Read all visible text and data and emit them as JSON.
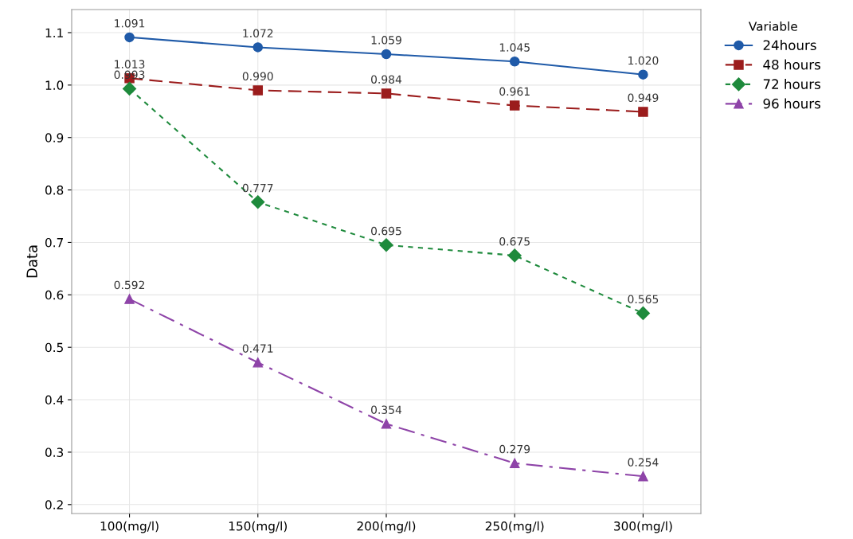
{
  "chart_data": {
    "type": "line",
    "ylabel": "Data",
    "legend_title": "Variable",
    "categories": [
      "100(mg/l)",
      "150(mg/l)",
      "200(mg/l)",
      "250(mg/l)",
      "300(mg/l)"
    ],
    "series": [
      {
        "name": "24hours",
        "color": "#1f5aa8",
        "marker": "circle",
        "line_style": "solid",
        "values": [
          1.091,
          1.072,
          1.059,
          1.045,
          1.02
        ],
        "value_labels": [
          "1.091",
          "1.072",
          "1.059",
          "1.045",
          "1.020"
        ]
      },
      {
        "name": "48 hours",
        "color": "#9b1c1c",
        "marker": "square",
        "line_style": "dashed",
        "values": [
          1.013,
          0.99,
          0.984,
          0.961,
          0.949
        ],
        "value_labels": [
          "1.013",
          "0.990",
          "0.984",
          "0.961",
          "0.949"
        ]
      },
      {
        "name": "72 hours",
        "color": "#1e8a3c",
        "marker": "diamond",
        "line_style": "dotted",
        "values": [
          0.993,
          0.777,
          0.695,
          0.675,
          0.565
        ],
        "value_labels": [
          "0.993",
          "0.777",
          "0.695",
          "0.675",
          "0.565"
        ]
      },
      {
        "name": "96 hours",
        "color": "#8e44a8",
        "marker": "triangle",
        "line_style": "dashdot",
        "values": [
          0.592,
          0.471,
          0.354,
          0.279,
          0.254
        ],
        "value_labels": [
          "0.592",
          "0.471",
          "0.354",
          "0.279",
          "0.254"
        ]
      }
    ],
    "ylim": [
      0.183,
      1.144
    ],
    "yticks": [
      0.2,
      0.3,
      0.4,
      0.5,
      0.6,
      0.7,
      0.8,
      0.9,
      {
        "value": 1.0,
        "label": "1.0"
      },
      1.1
    ],
    "grid": true,
    "legend": "top right"
  }
}
